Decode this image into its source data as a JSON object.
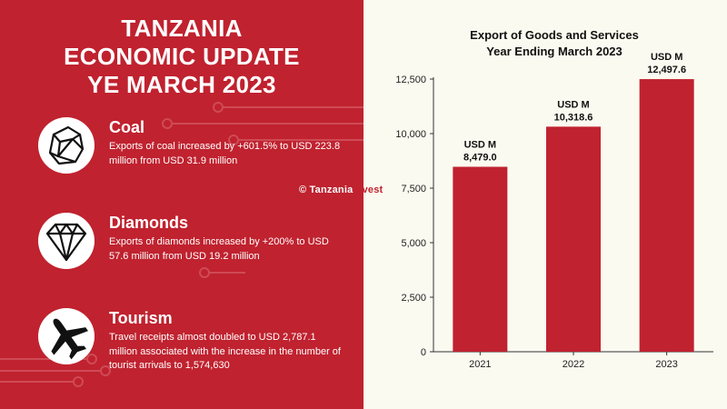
{
  "left": {
    "title_lines": [
      "TANZANIA",
      "ECONOMIC UPDATE",
      "YE MARCH 2023"
    ],
    "items": [
      {
        "heading": "Coal",
        "icon": "coal-icon",
        "text": "Exports of coal increased by +601.5% to USD 223.8 million from USD 31.9 million"
      },
      {
        "heading": "Diamonds",
        "icon": "diamond-icon",
        "text": "Exports of diamonds increased by +200% to USD 57.6 million from USD 19.2 million"
      },
      {
        "heading": "Tourism",
        "icon": "airplane-icon",
        "text": "Travel receipts almost doubled to USD 2,787.1 million associated with the increase in the number of tourist arrivals to 1,574,630"
      }
    ],
    "watermark": {
      "part1": "© Tanzania",
      "part2": "Invest"
    }
  },
  "colors": {
    "brand_red": "#c0222f",
    "cream": "#fbfaf0",
    "white": "#ffffff"
  },
  "chart_data": {
    "type": "bar",
    "title_lines": [
      "Export of Goods and Services",
      "Year Ending March 2023"
    ],
    "categories": [
      "2021",
      "2022",
      "2023"
    ],
    "values": [
      8479.0,
      10318.6,
      12497.6
    ],
    "label_prefix": "USD M",
    "labels": [
      "8,479.0",
      "10,318.6",
      "12,497.6"
    ],
    "yticks": [
      0,
      2500,
      5000,
      7500,
      10000,
      12500
    ],
    "ytick_labels": [
      "0",
      "2,500",
      "5,000",
      "7,500",
      "10,000",
      "12,500"
    ],
    "ylim": [
      0,
      12500
    ],
    "xlabel": "",
    "ylabel": "",
    "bar_color": "#c0222f"
  }
}
